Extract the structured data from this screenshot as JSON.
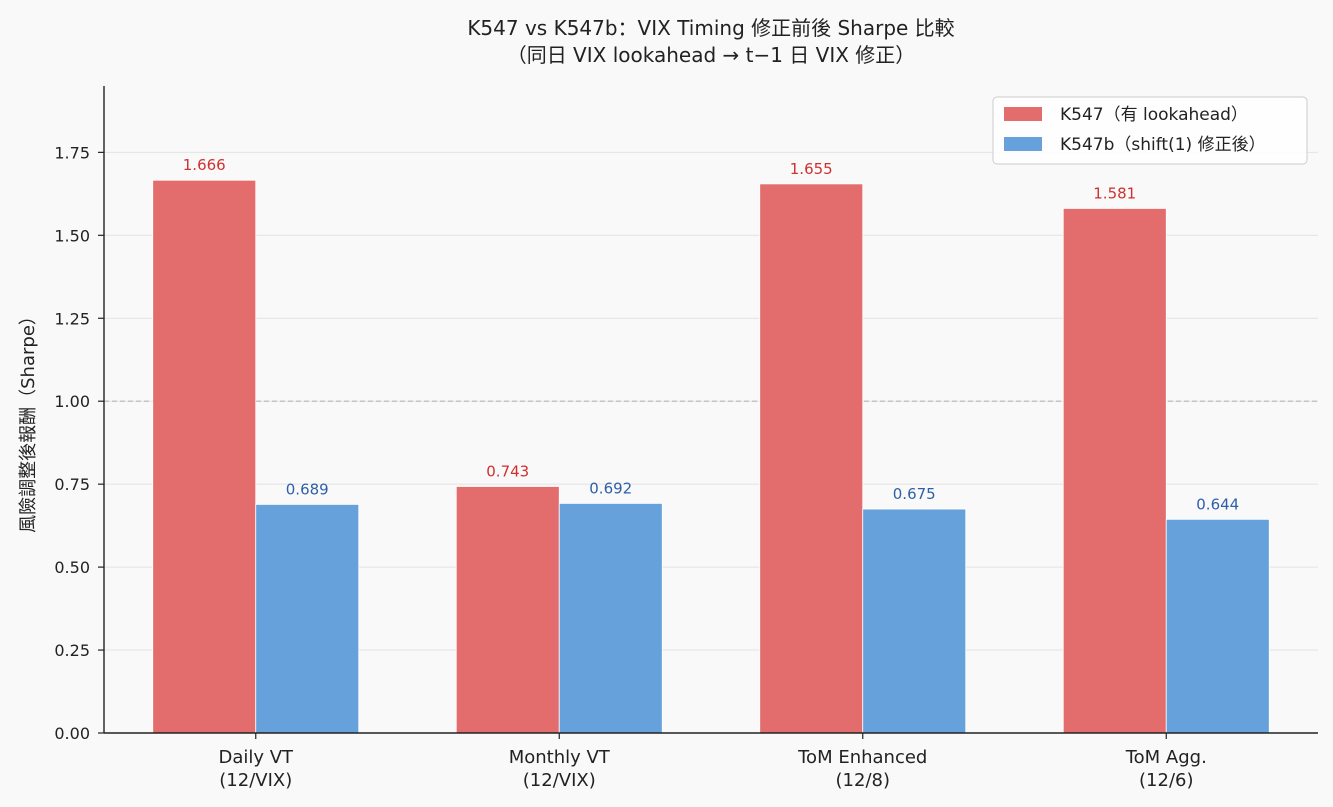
{
  "chart_data": {
    "type": "bar",
    "title": "K547 vs K547b：VIX Timing 修正前後 Sharpe 比較",
    "subtitle": "（同日 VIX lookahead → t−1 日 VIX 修正）",
    "ylabel": "風險調整後報酬（Sharpe）",
    "xlabel": "",
    "categories": [
      "Daily VT\n(12/VIX)",
      "Monthly VT\n(12/VIX)",
      "ToM Enhanced\n(12/8)",
      "ToM Agg.\n(12/6)"
    ],
    "series": [
      {
        "name": "K547（有 lookahead）",
        "values": [
          1.666,
          0.743,
          1.655,
          1.581
        ],
        "labels": [
          "1.666",
          "0.743",
          "1.655",
          "1.581"
        ],
        "color": "#e36c6c",
        "label_color": "#d03030"
      },
      {
        "name": "K547b（shift(1) 修正後）",
        "values": [
          0.689,
          0.692,
          0.675,
          0.644
        ],
        "labels": [
          "0.689",
          "0.692",
          "0.675",
          "0.644"
        ],
        "color": "#66a1dc",
        "label_color": "#2f5fa8"
      }
    ],
    "ylim": [
      0,
      1.95
    ],
    "yticks": [
      "0.00",
      "0.25",
      "0.50",
      "0.75",
      "1.00",
      "1.25",
      "1.50",
      "1.75"
    ],
    "reference_line": 1.0,
    "grid": "horizontal",
    "legend_position": "top-right"
  }
}
